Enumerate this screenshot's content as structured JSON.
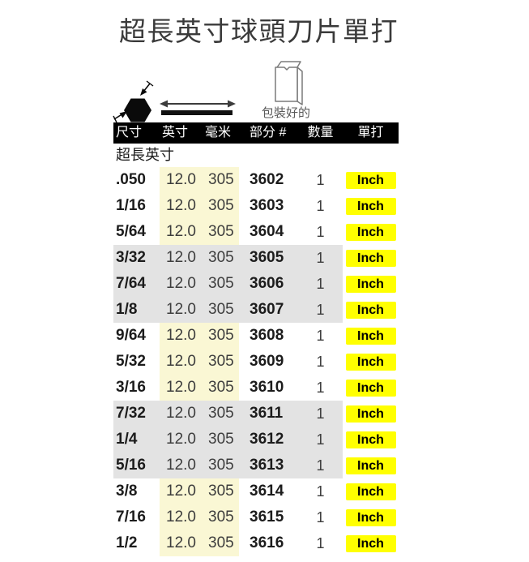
{
  "page": {
    "title": "超長英寸球頭刀片單打"
  },
  "colors": {
    "header_bg": "#000000",
    "header_text": "#ffffff",
    "highlight_yellow": "#faf7d4",
    "row_gray": "#e3e3e3",
    "button_yellow": "#ffff00",
    "button_text": "#000000"
  },
  "legend": {
    "hex_icon": "hexagon-size-icon",
    "length_icon": "double-arrow-length-icon",
    "package_icon": "package-bag-icon",
    "package_caption": "包裝好的"
  },
  "table": {
    "headers": [
      "尺寸",
      "英寸",
      "毫米",
      "部分 #",
      "數量",
      "單打"
    ],
    "section_label": "超長英寸",
    "rows": [
      {
        "size": ".050",
        "inch": "12.0",
        "mm": "305",
        "part": "3602",
        "qty": "1",
        "unit": "Inch"
      },
      {
        "size": "1/16",
        "inch": "12.0",
        "mm": "305",
        "part": "3603",
        "qty": "1",
        "unit": "Inch"
      },
      {
        "size": "5/64",
        "inch": "12.0",
        "mm": "305",
        "part": "3604",
        "qty": "1",
        "unit": "Inch"
      },
      {
        "size": "3/32",
        "inch": "12.0",
        "mm": "305",
        "part": "3605",
        "qty": "1",
        "unit": "Inch"
      },
      {
        "size": "7/64",
        "inch": "12.0",
        "mm": "305",
        "part": "3606",
        "qty": "1",
        "unit": "Inch"
      },
      {
        "size": "1/8",
        "inch": "12.0",
        "mm": "305",
        "part": "3607",
        "qty": "1",
        "unit": "Inch"
      },
      {
        "size": "9/64",
        "inch": "12.0",
        "mm": "305",
        "part": "3608",
        "qty": "1",
        "unit": "Inch"
      },
      {
        "size": "5/32",
        "inch": "12.0",
        "mm": "305",
        "part": "3609",
        "qty": "1",
        "unit": "Inch"
      },
      {
        "size": "3/16",
        "inch": "12.0",
        "mm": "305",
        "part": "3610",
        "qty": "1",
        "unit": "Inch"
      },
      {
        "size": "7/32",
        "inch": "12.0",
        "mm": "305",
        "part": "3611",
        "qty": "1",
        "unit": "Inch"
      },
      {
        "size": "1/4",
        "inch": "12.0",
        "mm": "305",
        "part": "3612",
        "qty": "1",
        "unit": "Inch"
      },
      {
        "size": "5/16",
        "inch": "12.0",
        "mm": "305",
        "part": "3613",
        "qty": "1",
        "unit": "Inch"
      },
      {
        "size": "3/8",
        "inch": "12.0",
        "mm": "305",
        "part": "3614",
        "qty": "1",
        "unit": "Inch"
      },
      {
        "size": "7/16",
        "inch": "12.0",
        "mm": "305",
        "part": "3615",
        "qty": "1",
        "unit": "Inch"
      },
      {
        "size": "1/2",
        "inch": "12.0",
        "mm": "305",
        "part": "3616",
        "qty": "1",
        "unit": "Inch"
      }
    ]
  }
}
